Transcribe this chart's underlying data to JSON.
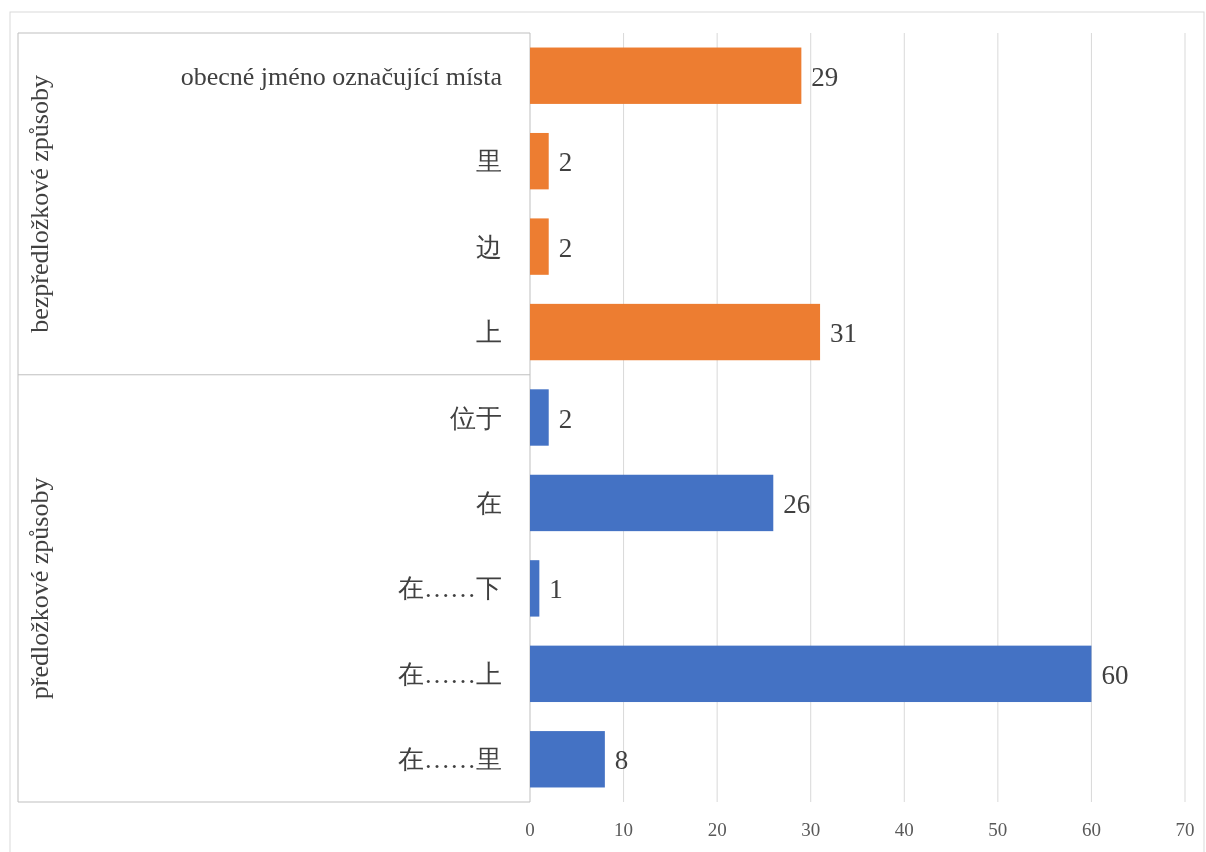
{
  "chart_data": {
    "type": "bar",
    "orientation": "horizontal",
    "categories": [
      "obecné jméno označující místa",
      "里",
      "边",
      "上",
      "位于",
      "在",
      "在……下",
      "在……上",
      "在……里"
    ],
    "series": [
      {
        "color": "#ed7d31",
        "values": [
          29,
          2,
          2,
          31,
          null,
          null,
          null,
          null,
          null
        ]
      },
      {
        "color": "#4472c4",
        "values": [
          null,
          null,
          null,
          null,
          2,
          26,
          1,
          60,
          8
        ]
      }
    ],
    "annotations": [
      "bezpředložkové způsoby",
      "předložkové způsoby"
    ],
    "xlim": [
      0,
      70
    ],
    "xticks": [
      0,
      10,
      20,
      30,
      40,
      50,
      60,
      70
    ],
    "grid": "x",
    "data_labels": true
  }
}
